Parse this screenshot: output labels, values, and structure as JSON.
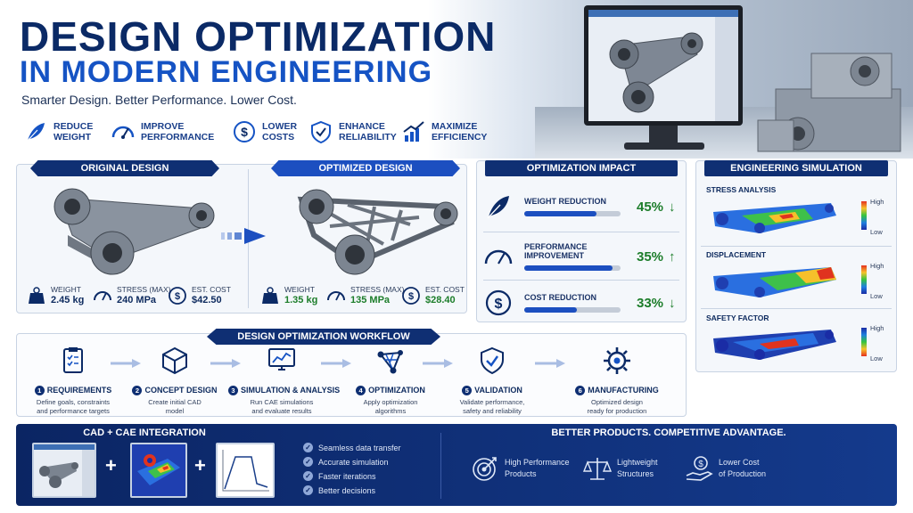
{
  "header": {
    "title_line1": "DESIGN OPTIMIZATION",
    "title_line2": "IN MODERN ENGINEERING",
    "subtitle": "Smarter Design. Better Performance. Lower Cost."
  },
  "benefits": [
    {
      "line1": "REDUCE",
      "line2": "WEIGHT",
      "icon": "feather-icon"
    },
    {
      "line1": "IMPROVE",
      "line2": "PERFORMANCE",
      "icon": "gauge-icon"
    },
    {
      "line1": "LOWER",
      "line2": "COSTS",
      "icon": "dollar-icon"
    },
    {
      "line1": "ENHANCE",
      "line2": "RELIABILITY",
      "icon": "shield-check-icon"
    },
    {
      "line1": "MAXIMIZE",
      "line2": "EFFICIENCY",
      "icon": "growth-chart-icon"
    }
  ],
  "original": {
    "title": "ORIGINAL DESIGN",
    "metrics": [
      {
        "label": "WEIGHT",
        "value": "2.45 kg",
        "icon": "weight-icon"
      },
      {
        "label": "STRESS (MAX)",
        "value": "240 MPa",
        "icon": "gauge-icon"
      },
      {
        "label": "EST. COST",
        "value": "$42.50",
        "icon": "dollar-icon"
      }
    ]
  },
  "optimized": {
    "title": "OPTIMIZED DESIGN",
    "metrics": [
      {
        "label": "WEIGHT",
        "value": "1.35 kg",
        "icon": "weight-icon"
      },
      {
        "label": "STRESS (MAX)",
        "value": "135 MPa",
        "icon": "gauge-icon"
      },
      {
        "label": "EST. COST",
        "value": "$28.40",
        "icon": "dollar-icon"
      }
    ]
  },
  "impact": {
    "title": "OPTIMIZATION IMPACT",
    "rows": [
      {
        "label": "WEIGHT REDUCTION",
        "value": "45%",
        "fill": 0.75,
        "direction": "down",
        "icon": "feather-icon"
      },
      {
        "label": "PERFORMANCE IMPROVEMENT",
        "value": "35%",
        "fill": 0.92,
        "direction": "up",
        "icon": "gauge-icon"
      },
      {
        "label": "COST REDUCTION",
        "value": "33%",
        "fill": 0.55,
        "direction": "down",
        "icon": "dollar-icon"
      }
    ]
  },
  "simulation": {
    "title": "ENGINEERING SIMULATION",
    "items": [
      {
        "label": "STRESS ANALYSIS",
        "high": "High",
        "low": "Low"
      },
      {
        "label": "DISPLACEMENT",
        "high": "High",
        "low": "Low"
      },
      {
        "label": "SAFETY FACTOR",
        "high": "High",
        "low": "Low"
      }
    ]
  },
  "workflow": {
    "title": "DESIGN OPTIMIZATION WORKFLOW",
    "steps": [
      {
        "num": "1",
        "title": "REQUIREMENTS",
        "desc1": "Define goals, constraints",
        "desc2": "and performance targets",
        "icon": "checklist-icon"
      },
      {
        "num": "2",
        "title": "CONCEPT DESIGN",
        "desc1": "Create initial CAD",
        "desc2": "model",
        "icon": "cube-icon"
      },
      {
        "num": "3",
        "title": "SIMULATION & ANALYSIS",
        "desc1": "Run CAE simulations",
        "desc2": "and evaluate results",
        "icon": "monitor-chart-icon"
      },
      {
        "num": "4",
        "title": "OPTIMIZATION",
        "desc1": "Apply optimization",
        "desc2": "algorithms",
        "icon": "lattice-icon"
      },
      {
        "num": "5",
        "title": "VALIDATION",
        "desc1": "Validate performance,",
        "desc2": "safety and reliability",
        "icon": "shield-check-icon"
      },
      {
        "num": "6",
        "title": "MANUFACTURING",
        "desc1": "Optimized design",
        "desc2": "ready for production",
        "icon": "gear-icon"
      }
    ]
  },
  "integration": {
    "title": "CAD + CAE INTEGRATION",
    "plus": "+",
    "checks": [
      "Seamless data transfer",
      "Accurate simulation",
      "Faster iterations",
      "Better decisions"
    ]
  },
  "advantage": {
    "title": "BETTER PRODUCTS. COMPETITIVE ADVANTAGE.",
    "items": [
      {
        "line1": "High Performance",
        "line2": "Products",
        "icon": "target-icon"
      },
      {
        "line1": "Lightweight",
        "line2": "Structures",
        "icon": "balance-icon"
      },
      {
        "line1": "Lower Cost",
        "line2": "of Production",
        "icon": "hand-dollar-icon"
      }
    ]
  },
  "colors": {
    "navy": "#0b2a66",
    "accent": "#1c4fc0",
    "green": "#1c7d2a"
  }
}
